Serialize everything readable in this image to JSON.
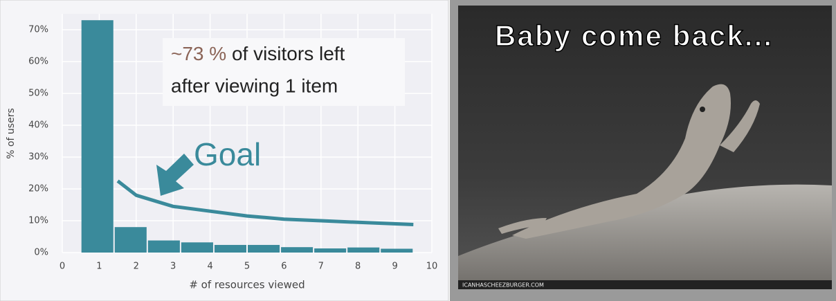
{
  "chart_data": {
    "type": "histogram",
    "bins": [
      0.5,
      1.4,
      2.3,
      3.2,
      4.1,
      5,
      5.9,
      6.8,
      7.7,
      8.6,
      9.5
    ],
    "values": [
      73,
      8,
      3.8,
      3.2,
      2.4,
      2.4,
      1.7,
      1.3,
      1.6,
      1.2
    ],
    "color": "#3a8a9b",
    "xlabel": "# of resources viewed",
    "ylabel": "% of users",
    "xlim": [
      0,
      10
    ],
    "xticks": [
      0,
      1,
      2,
      3,
      4,
      5,
      6,
      7,
      8,
      9,
      10
    ],
    "ylim": [
      0,
      75
    ],
    "yticks": [
      {
        "value": 0,
        "label": "0%"
      },
      {
        "value": 10,
        "label": "10%"
      },
      {
        "value": 20,
        "label": "20%"
      },
      {
        "value": 30,
        "label": "30%"
      },
      {
        "value": 40,
        "label": "40%"
      },
      {
        "value": 50,
        "label": "50%"
      },
      {
        "value": 60,
        "label": "60%"
      },
      {
        "value": 70,
        "label": "70%"
      }
    ],
    "grid": true,
    "goal_line": {
      "label": "Goal",
      "color": "#3a8a9b",
      "x": [
        1.5,
        2,
        3,
        4,
        5,
        6,
        7,
        8,
        9.5
      ],
      "values": [
        22.5,
        18,
        14.5,
        13,
        11.5,
        10.5,
        10,
        9.5,
        8.8
      ]
    },
    "annotation": {
      "highlight": "~73 %",
      "line1": "of visitors left",
      "line2": "after viewing 1 item"
    }
  },
  "image": {
    "caption": "Baby come back...",
    "watermark": "ICANHASCHEEZBURGER.COM"
  }
}
